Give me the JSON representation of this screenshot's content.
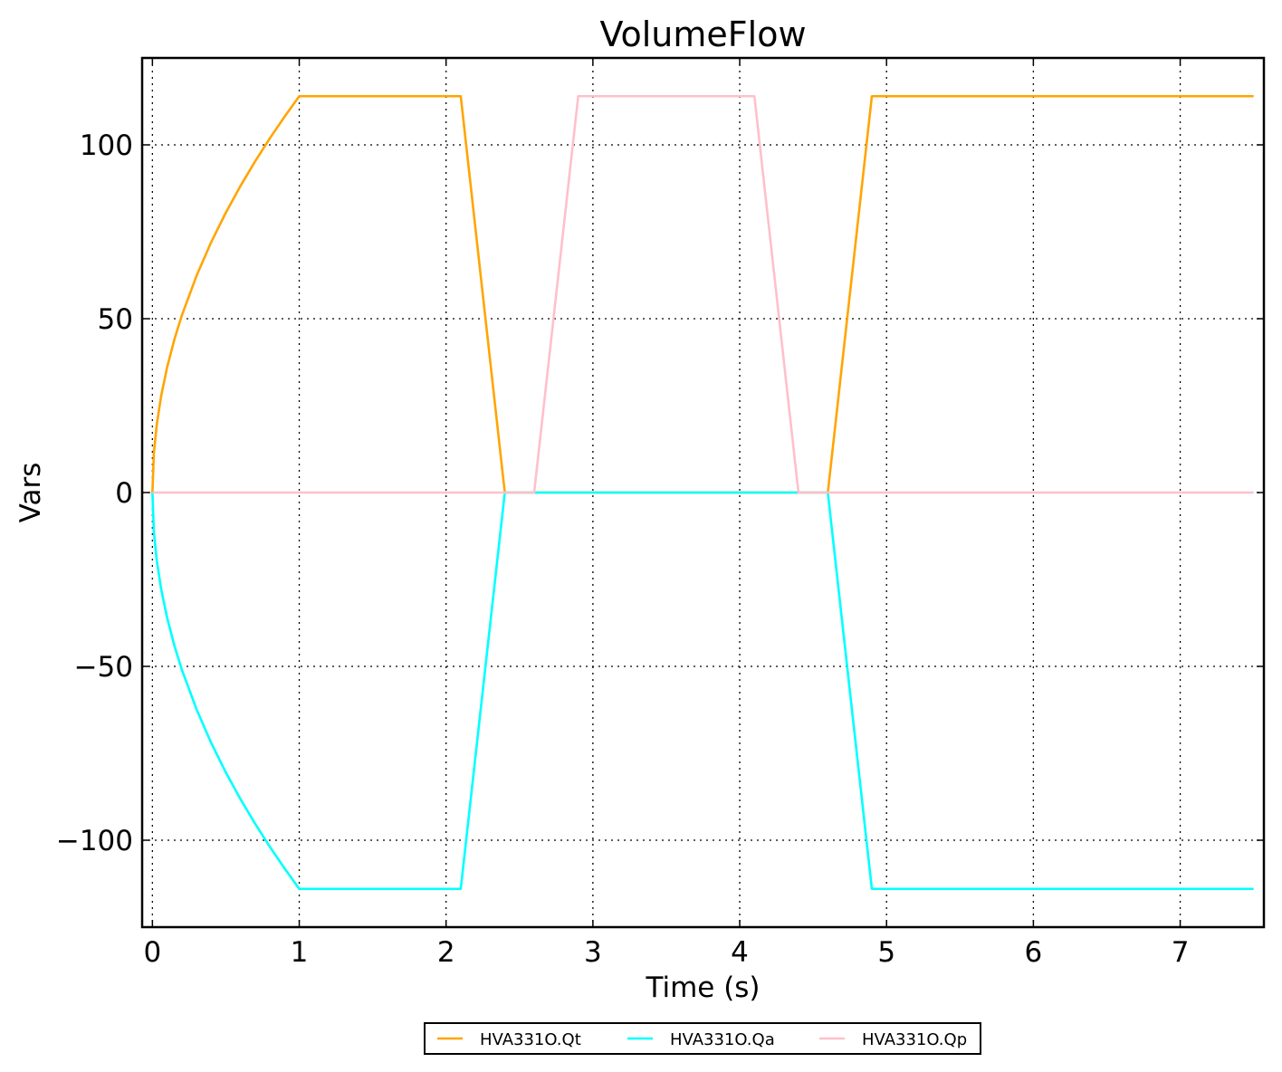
{
  "chart_data": {
    "type": "line",
    "title": "VolumeFlow",
    "xlabel": "Time (s)",
    "ylabel": "Vars",
    "xlim": [
      -0.07,
      7.57
    ],
    "ylim": [
      -125,
      125
    ],
    "xticks": [
      0,
      1,
      2,
      3,
      4,
      5,
      6,
      7
    ],
    "yticks": [
      -100,
      -50,
      0,
      50,
      100
    ],
    "ytick_labels": [
      "−100",
      "−50",
      "0",
      "50",
      "100"
    ],
    "grid": true,
    "legend_position": "bottom-center",
    "series": [
      {
        "name": "HVA331O.Qt",
        "color": "#ffa500",
        "x": [
          0,
          0.01,
          0.03,
          0.06,
          0.1,
          0.15,
          0.2,
          0.3,
          0.4,
          0.5,
          0.6,
          0.7,
          0.8,
          0.9,
          1.0,
          2.1,
          2.4,
          2.6,
          2.9,
          4.1,
          4.4,
          4.6,
          4.9,
          7.5
        ],
        "y": [
          0,
          11.4,
          19.7,
          27.9,
          36.0,
          44.1,
          50.9,
          62.3,
          72.0,
          80.5,
          88.2,
          95.3,
          101.9,
          108.1,
          114.0,
          114.0,
          0,
          0,
          0,
          0,
          0,
          0,
          114.0,
          114.0
        ]
      },
      {
        "name": "HVA331O.Qa",
        "color": "#00ffff",
        "x": [
          0,
          0.01,
          0.03,
          0.06,
          0.1,
          0.15,
          0.2,
          0.3,
          0.4,
          0.5,
          0.6,
          0.7,
          0.8,
          0.9,
          1.0,
          2.1,
          2.4,
          2.6,
          2.9,
          4.1,
          4.4,
          4.6,
          4.9,
          7.5
        ],
        "y": [
          0,
          -11.4,
          -19.7,
          -27.9,
          -36.0,
          -44.1,
          -50.9,
          -62.3,
          -72.0,
          -80.5,
          -88.2,
          -95.3,
          -101.9,
          -108.1,
          -114.0,
          -114.0,
          0,
          0,
          0,
          0,
          0,
          0,
          -114.0,
          -114.0
        ]
      },
      {
        "name": "HVA331O.Qp",
        "color": "#ffc0cb",
        "x": [
          0,
          2.4,
          2.6,
          2.9,
          4.1,
          4.4,
          4.6,
          7.5
        ],
        "y": [
          0,
          0,
          0,
          114.0,
          114.0,
          0,
          0,
          0
        ]
      }
    ]
  }
}
